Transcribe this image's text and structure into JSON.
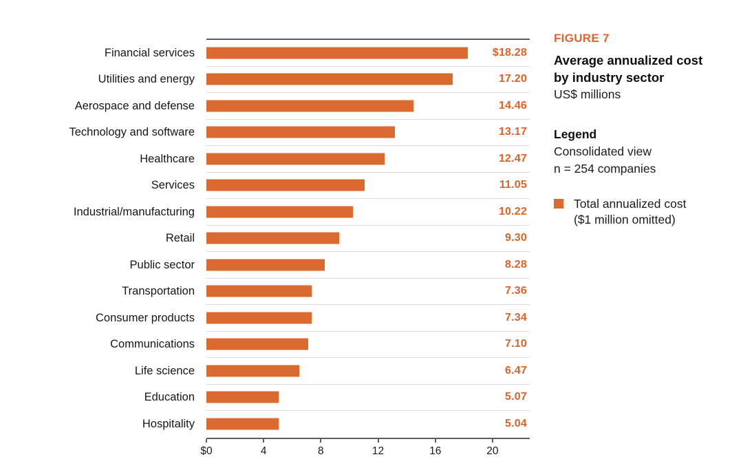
{
  "figure_panel": {
    "kicker": "FIGURE 7",
    "kicker_color": "#E0662F",
    "title_line1": "Average annualized cost",
    "title_line2": "by industry sector",
    "subtitle": "US$ millions",
    "legend_heading": "Legend",
    "legend_line1": "Consolidated view",
    "legend_line2": "n = 254 companies",
    "legend_item": {
      "swatch_color": "#DB6A31",
      "label_line1": "Total annualized cost",
      "label_line2": "($1 million omitted)"
    }
  },
  "chart_data": {
    "type": "bar",
    "orientation": "horizontal",
    "title": "Average annualized cost by industry sector",
    "subtitle": "US$ millions",
    "units": "US$ millions ($1 million omitted)",
    "sample_note": "Consolidated view, n = 254 companies",
    "categories": [
      "Financial services",
      "Utilities and energy",
      "Aerospace and defense",
      "Technology and software",
      "Healthcare",
      "Services",
      "Industrial/manufacturing",
      "Retail",
      "Public sector",
      "Transportation",
      "Consumer products",
      "Communications",
      "Life science",
      "Education",
      "Hospitality"
    ],
    "values": [
      18.28,
      17.2,
      14.46,
      13.17,
      12.47,
      11.05,
      10.22,
      9.3,
      8.28,
      7.36,
      7.34,
      7.1,
      6.47,
      5.07,
      5.04
    ],
    "value_labels": [
      "$18.28",
      "17.20",
      "14.46",
      "13.17",
      "12.47",
      "11.05",
      "10.22",
      "9.30",
      "8.28",
      "7.36",
      "7.34",
      "7.10",
      "6.47",
      "5.07",
      "5.04"
    ],
    "tick_values": [
      0,
      4,
      8,
      12,
      16,
      20
    ],
    "tick_labels": [
      "$0",
      "4",
      "8",
      "12",
      "16",
      "20"
    ],
    "xlim": [
      0,
      22.6
    ],
    "bar_color": "#DB6A31",
    "value_label_color": "#DC6228",
    "grid": "horizontal row dividers only",
    "legend_position": "right",
    "series_name": "Total annualized cost"
  }
}
